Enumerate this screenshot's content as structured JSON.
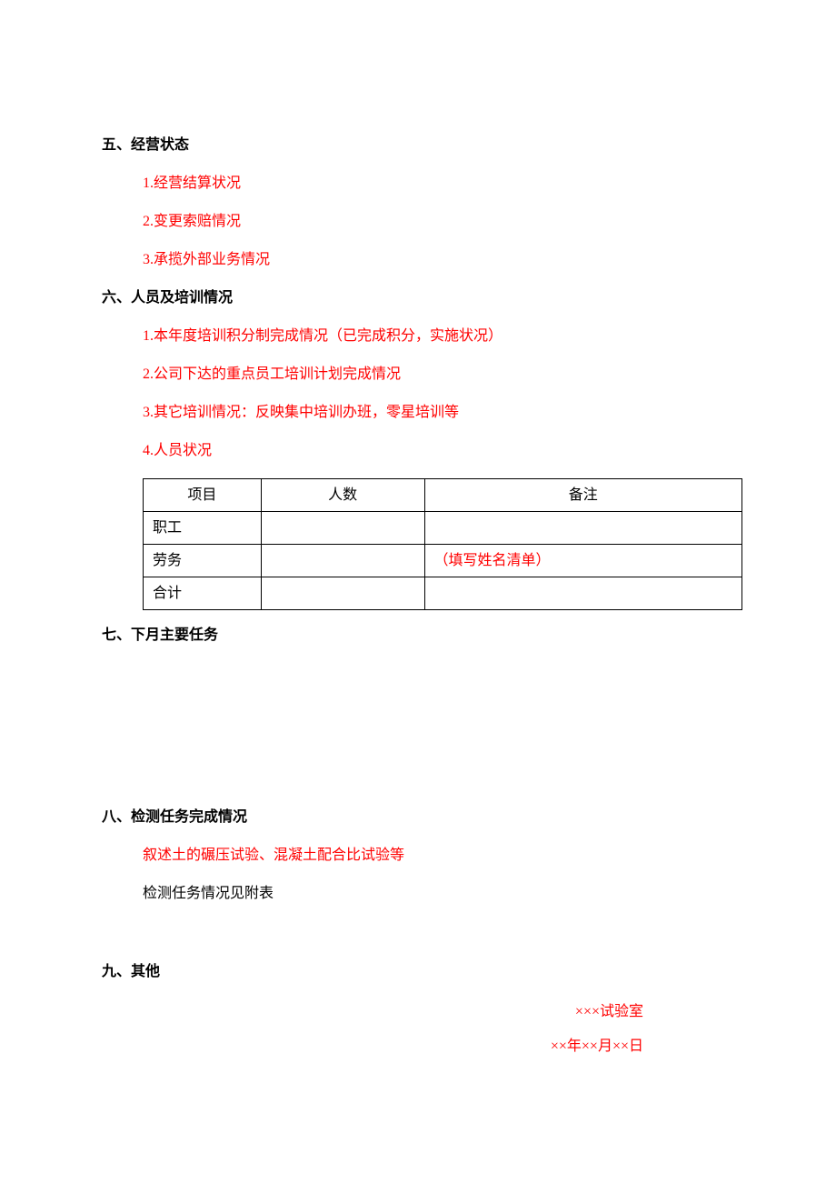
{
  "section5": {
    "heading": "五、经营状态",
    "items": [
      "1.经营结算状况",
      "2.变更索赔情况",
      "3.承揽外部业务情况"
    ]
  },
  "section6": {
    "heading": "六、人员及培训情况",
    "items": [
      "1.本年度培训积分制完成情况（已完成积分，实施状况）",
      "2.公司下达的重点员工培训计划完成情况",
      "3.其它培训情况：反映集中培训办班，零星培训等",
      "4.人员状况"
    ],
    "table": {
      "headers": [
        "项目",
        "人数",
        "备注"
      ],
      "rows": [
        {
          "label": "职工",
          "count": "",
          "note": ""
        },
        {
          "label": "劳务",
          "count": "",
          "note": "（填写姓名清单）",
          "noteColor": "#ff0000"
        },
        {
          "label": "合计",
          "count": "",
          "note": ""
        }
      ]
    }
  },
  "section7": {
    "heading": "七、下月主要任务"
  },
  "section8": {
    "heading": "八、检测任务完成情况",
    "redItem": "叙述土的碾压试验、混凝土配合比试验等",
    "blackItem": "检测任务情况见附表"
  },
  "section9": {
    "heading": "九、其他"
  },
  "signature": {
    "lab": "×××试验室",
    "date": "××年××月××日"
  },
  "colors": {
    "red": "#ff0000",
    "black": "#000000"
  }
}
